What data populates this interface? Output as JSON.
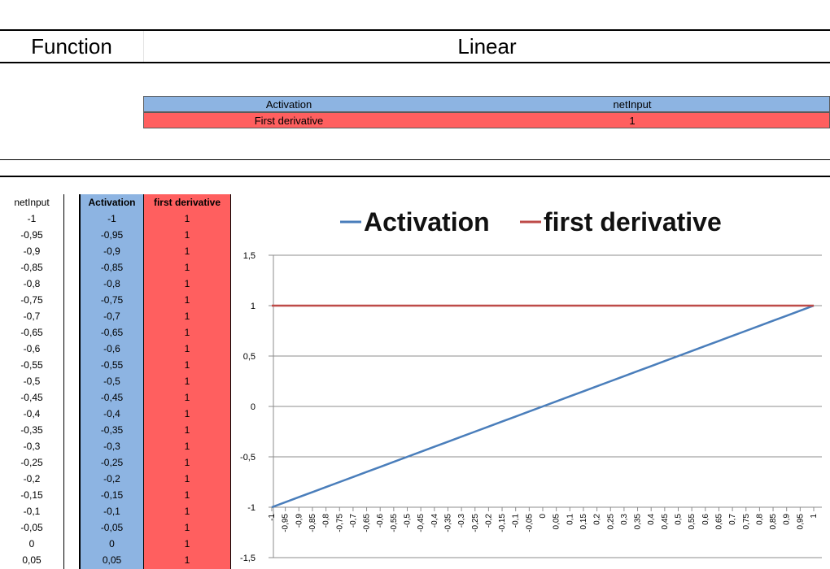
{
  "header": {
    "function_label": "Function",
    "function_value": "Linear"
  },
  "formula": {
    "activation_label": "Activation",
    "activation_expr": "netInput",
    "derivative_label": "First derivative",
    "derivative_expr": "1"
  },
  "table": {
    "headers": [
      "netInput",
      "Activation",
      "first derivative"
    ],
    "net_input": [
      "-1",
      "-0,95",
      "-0,9",
      "-0,85",
      "-0,8",
      "-0,75",
      "-0,7",
      "-0,65",
      "-0,6",
      "-0,55",
      "-0,5",
      "-0,45",
      "-0,4",
      "-0,35",
      "-0,3",
      "-0,25",
      "-0,2",
      "-0,15",
      "-0,1",
      "-0,05",
      "0",
      "0,05"
    ],
    "activation": [
      "-1",
      "-0,95",
      "-0,9",
      "-0,85",
      "-0,8",
      "-0,75",
      "-0,7",
      "-0,65",
      "-0,6",
      "-0,55",
      "-0,5",
      "-0,45",
      "-0,4",
      "-0,35",
      "-0,3",
      "-0,25",
      "-0,2",
      "-0,15",
      "-0,1",
      "-0,05",
      "0",
      "0,05"
    ],
    "derivative": [
      "1",
      "1",
      "1",
      "1",
      "1",
      "1",
      "1",
      "1",
      "1",
      "1",
      "1",
      "1",
      "1",
      "1",
      "1",
      "1",
      "1",
      "1",
      "1",
      "1",
      "1",
      "1"
    ]
  },
  "colors": {
    "activation_fill": "#8db4e2",
    "derivative_fill": "#ff5f5f",
    "activation_line": "#4a7ebb",
    "derivative_line": "#be4b48"
  },
  "chart_data": {
    "type": "line",
    "title": "",
    "xlabel": "",
    "ylabel": "",
    "legend_position": "top",
    "grid": true,
    "ylim": [
      -1.5,
      1.5
    ],
    "y_ticks": [
      "-1,5",
      "-1",
      "-0,5",
      "0",
      "0,5",
      "1",
      "1,5"
    ],
    "y_tick_values": [
      -1.5,
      -1,
      -0.5,
      0,
      0.5,
      1,
      1.5
    ],
    "x": [
      "-1",
      "-0,95",
      "-0,9",
      "-0,85",
      "-0,8",
      "-0,75",
      "-0,7",
      "-0,65",
      "-0,6",
      "-0,55",
      "-0,5",
      "-0,45",
      "-0,4",
      "-0,35",
      "-0,3",
      "-0,25",
      "-0,2",
      "-0,15",
      "-0,1",
      "-0,05",
      "0",
      "0,05",
      "0,1",
      "0,15",
      "0,2",
      "0,25",
      "0,3",
      "0,35",
      "0,4",
      "0,45",
      "0,5",
      "0,55",
      "0,6",
      "0,65",
      "0,7",
      "0,75",
      "0,8",
      "0,85",
      "0,9",
      "0,95",
      "1"
    ],
    "series": [
      {
        "name": "Activation",
        "values": [
          -1,
          -0.95,
          -0.9,
          -0.85,
          -0.8,
          -0.75,
          -0.7,
          -0.65,
          -0.6,
          -0.55,
          -0.5,
          -0.45,
          -0.4,
          -0.35,
          -0.3,
          -0.25,
          -0.2,
          -0.15,
          -0.1,
          -0.05,
          0,
          0.05,
          0.1,
          0.15,
          0.2,
          0.25,
          0.3,
          0.35,
          0.4,
          0.45,
          0.5,
          0.55,
          0.6,
          0.65,
          0.7,
          0.75,
          0.8,
          0.85,
          0.9,
          0.95,
          1
        ]
      },
      {
        "name": "first derivative",
        "values": [
          1,
          1,
          1,
          1,
          1,
          1,
          1,
          1,
          1,
          1,
          1,
          1,
          1,
          1,
          1,
          1,
          1,
          1,
          1,
          1,
          1,
          1,
          1,
          1,
          1,
          1,
          1,
          1,
          1,
          1,
          1,
          1,
          1,
          1,
          1,
          1,
          1,
          1,
          1,
          1,
          1
        ]
      }
    ]
  }
}
